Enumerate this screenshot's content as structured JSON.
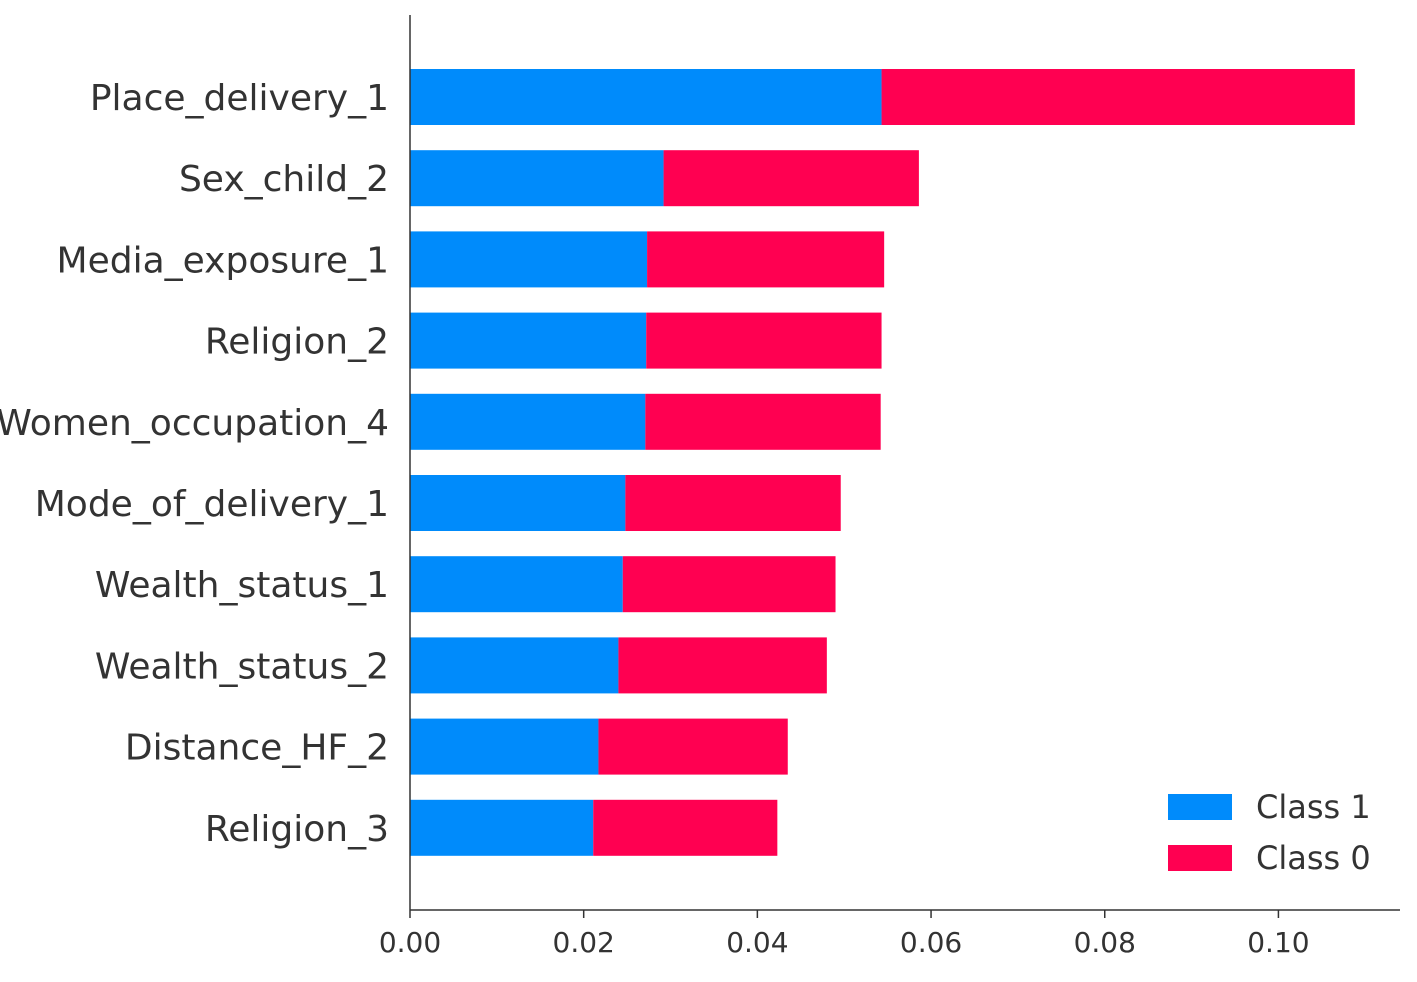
{
  "chart_data": {
    "type": "bar",
    "stacked": true,
    "orientation": "horizontal",
    "title": "",
    "xlabel": "",
    "ylabel": "",
    "xlim": [
      0,
      0.114
    ],
    "categories": [
      "Place_delivery_1",
      "Sex_child_2",
      "Media_exposure_1",
      "Religion_2",
      "Women_occupation_4",
      "Mode_of_delivery_1",
      "Wealth_status_1",
      "Wealth_status_2",
      "Distance_HF_2",
      "Religion_3"
    ],
    "series": [
      {
        "name": "Class 1",
        "color": "#008bfb",
        "values": [
          0.0543,
          0.0292,
          0.0273,
          0.0272,
          0.0271,
          0.0248,
          0.0245,
          0.024,
          0.0217,
          0.0211
        ]
      },
      {
        "name": "Class 0",
        "color": "#ff0051",
        "values": [
          0.0545,
          0.0294,
          0.0273,
          0.0271,
          0.0271,
          0.0248,
          0.0245,
          0.024,
          0.0218,
          0.0212
        ]
      }
    ],
    "xticks": [
      0.0,
      0.02,
      0.04,
      0.06,
      0.08,
      0.1
    ],
    "xtick_labels": [
      "0.00",
      "0.02",
      "0.04",
      "0.06",
      "0.08",
      "0.10"
    ],
    "legend": {
      "position": "bottom-right",
      "entries": [
        "Class 1",
        "Class 0"
      ]
    },
    "grid": false
  }
}
